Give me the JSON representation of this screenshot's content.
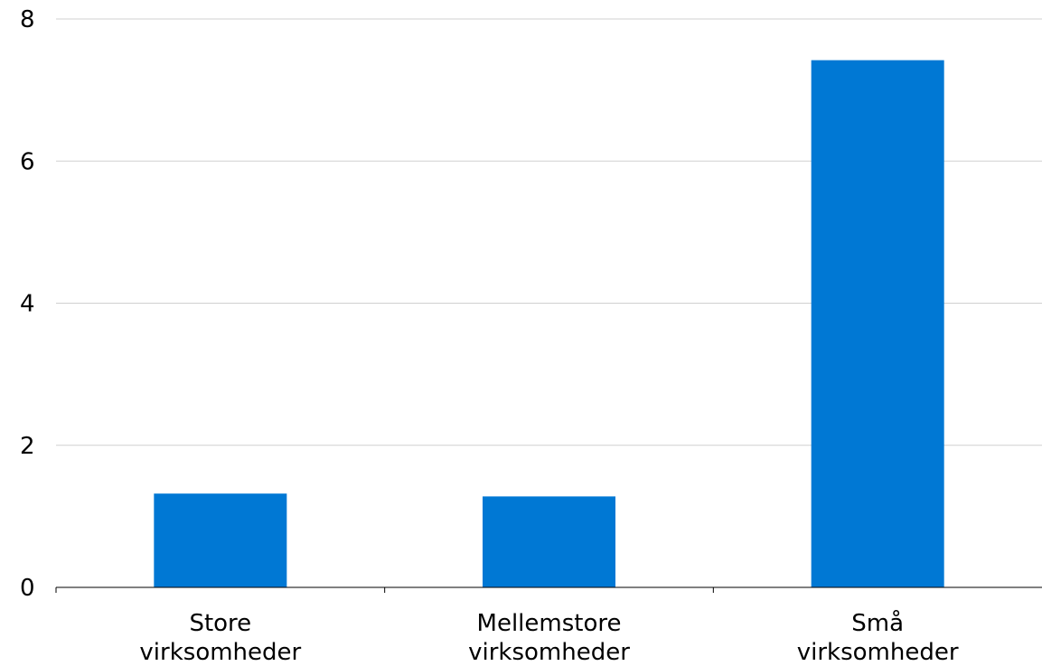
{
  "chart_data": {
    "type": "bar",
    "categories": [
      [
        "Store",
        "virksomheder"
      ],
      [
        "Mellemstore",
        "virksomheder"
      ],
      [
        "Små",
        "virksomheder"
      ]
    ],
    "values": [
      1.32,
      1.28,
      7.42
    ],
    "title": "",
    "xlabel": "",
    "ylabel": "",
    "ylim": [
      0,
      8
    ],
    "yticks": [
      0,
      2,
      4,
      6,
      8
    ],
    "grid": true,
    "bar_color": "#0078D4"
  }
}
